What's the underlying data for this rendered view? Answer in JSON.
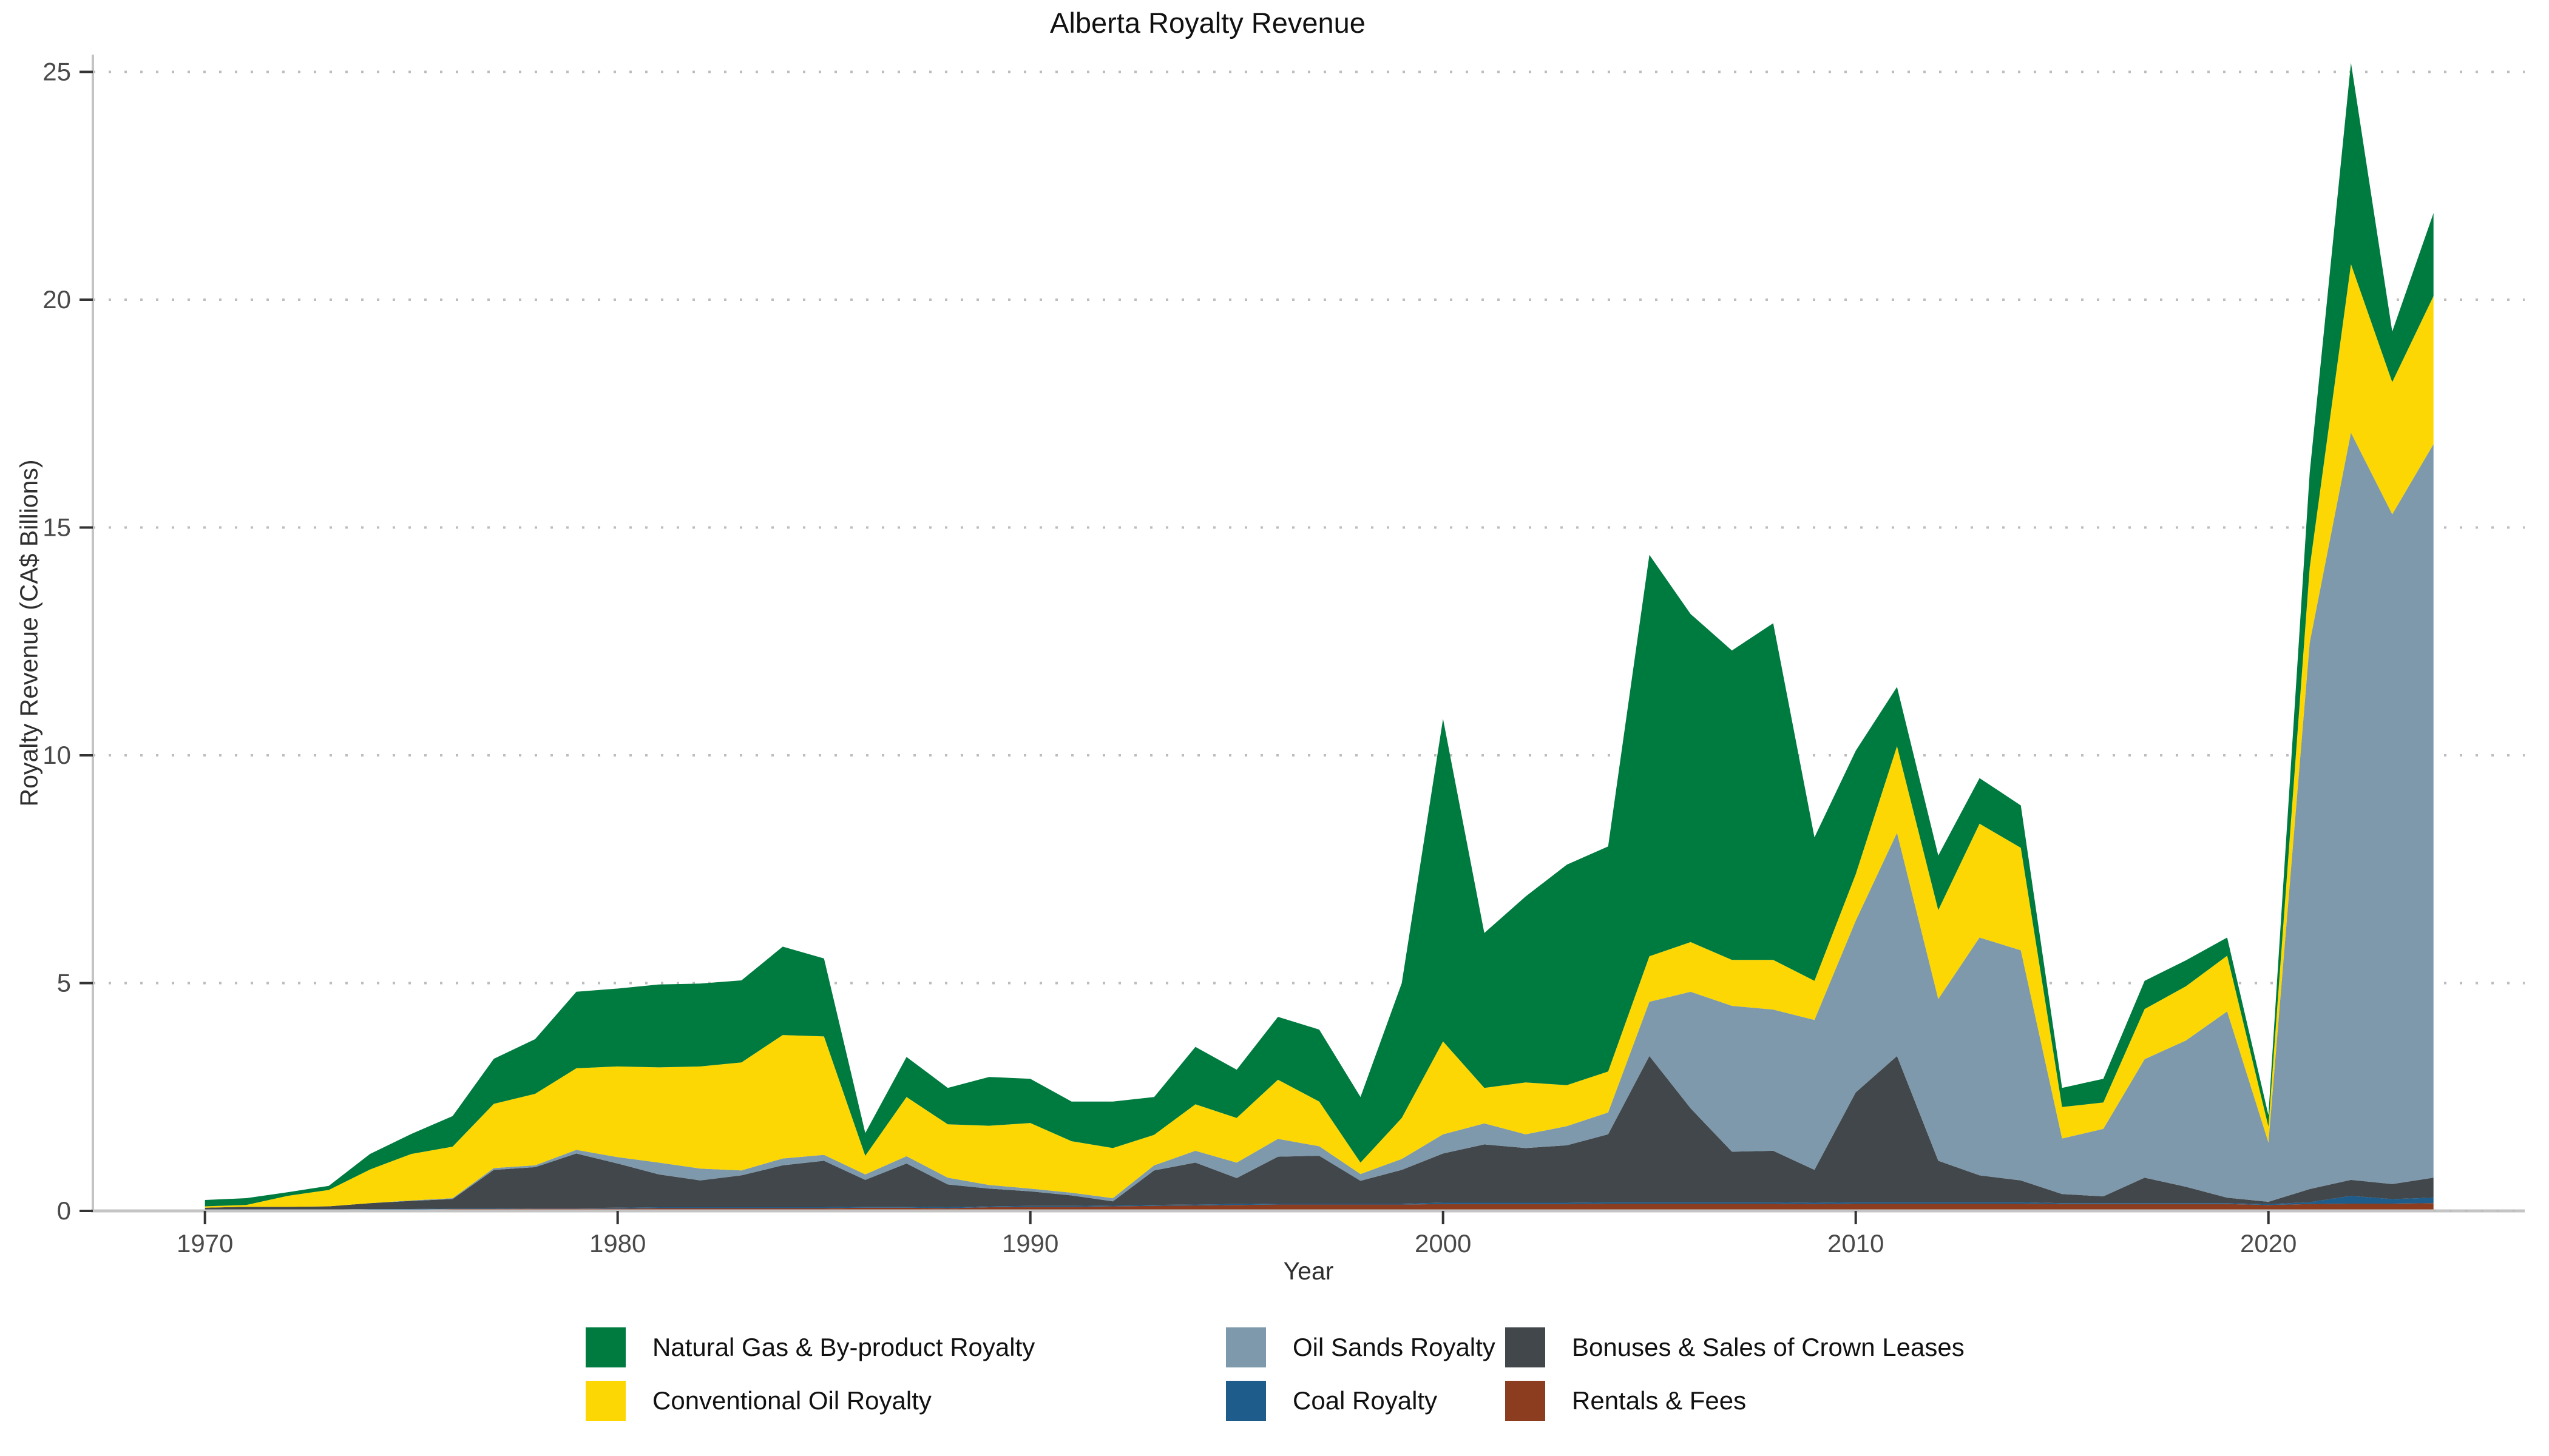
{
  "title": "Alberta Royalty Revenue",
  "axes": {
    "x_label": "Year",
    "y_label": "Royalty Revenue (CA$ Billions)",
    "x_ticks": [
      1970,
      1980,
      1990,
      2000,
      2010,
      2020
    ],
    "y_ticks": [
      0,
      5,
      10,
      15,
      20,
      25
    ]
  },
  "legend": {
    "position": "bottom",
    "items": [
      {
        "label": "Natural Gas & By-product Royalty",
        "series": "natural_gas",
        "color": "#007B40",
        "col": 0,
        "row": 0
      },
      {
        "label": "Conventional Oil Royalty",
        "series": "conventional_oil",
        "color": "#FCD703",
        "col": 0,
        "row": 1
      },
      {
        "label": "Oil Sands Royalty",
        "series": "oil_sands",
        "color": "#7E99AB",
        "col": 1,
        "row": 0
      },
      {
        "label": "Coal Royalty",
        "series": "coal",
        "color": "#1E5C8B",
        "col": 1,
        "row": 1
      },
      {
        "label": "Bonuses & Sales of Crown Leases",
        "series": "bonuses",
        "color": "#41474B",
        "col": 2,
        "row": 0
      },
      {
        "label": "Rentals & Fees",
        "series": "rentals",
        "color": "#8C3D20",
        "col": 2,
        "row": 1
      }
    ]
  },
  "colors": {
    "axis_line": "#C4C4C4",
    "tick_mark": "#333333",
    "tick_label": "#4a4a4a",
    "gridline": "#BDBDBD",
    "background": "#ffffff"
  },
  "chart_data": {
    "type": "area",
    "stacked": true,
    "title": "Alberta Royalty Revenue",
    "xlabel": "Year",
    "ylabel": "Royalty Revenue (CA$ Billions)",
    "xlim": [
      1970,
      2024
    ],
    "ylim": [
      0,
      25
    ],
    "xticks": [
      1970,
      1980,
      1990,
      2000,
      2010,
      2020
    ],
    "yticks": [
      0,
      5,
      10,
      15,
      20,
      25
    ],
    "grid": "dotted horizontal",
    "legend_position": "bottom",
    "x": [
      1970,
      1971,
      1972,
      1973,
      1974,
      1975,
      1976,
      1977,
      1978,
      1979,
      1980,
      1981,
      1982,
      1983,
      1984,
      1985,
      1986,
      1987,
      1988,
      1989,
      1990,
      1991,
      1992,
      1993,
      1994,
      1995,
      1996,
      1997,
      1998,
      1999,
      2000,
      2001,
      2002,
      2003,
      2004,
      2005,
      2006,
      2007,
      2008,
      2009,
      2010,
      2011,
      2012,
      2013,
      2014,
      2015,
      2016,
      2017,
      2018,
      2019,
      2020,
      2021,
      2022,
      2023,
      2024
    ],
    "series": [
      {
        "name": "Rentals & Fees",
        "key": "rentals",
        "color": "#8C3D20",
        "values": [
          0.01,
          0.01,
          0.02,
          0.02,
          0.03,
          0.03,
          0.04,
          0.04,
          0.05,
          0.05,
          0.05,
          0.06,
          0.06,
          0.06,
          0.06,
          0.06,
          0.07,
          0.07,
          0.06,
          0.08,
          0.09,
          0.09,
          0.1,
          0.11,
          0.12,
          0.13,
          0.14,
          0.14,
          0.14,
          0.14,
          0.15,
          0.15,
          0.15,
          0.15,
          0.16,
          0.16,
          0.16,
          0.16,
          0.16,
          0.15,
          0.16,
          0.16,
          0.16,
          0.16,
          0.16,
          0.15,
          0.15,
          0.15,
          0.15,
          0.15,
          0.13,
          0.15,
          0.16,
          0.16,
          0.17
        ]
      },
      {
        "name": "Coal Royalty",
        "key": "coal",
        "color": "#1E5C8B",
        "values": [
          0,
          0,
          0.01,
          0.01,
          0.01,
          0.01,
          0.01,
          0.01,
          0.01,
          0.01,
          0.02,
          0.02,
          0.02,
          0.02,
          0.02,
          0.02,
          0.02,
          0.02,
          0.02,
          0.02,
          0.02,
          0.02,
          0.02,
          0.02,
          0.02,
          0.02,
          0.02,
          0.02,
          0.02,
          0.02,
          0.03,
          0.03,
          0.03,
          0.03,
          0.03,
          0.03,
          0.03,
          0.03,
          0.03,
          0.03,
          0.03,
          0.03,
          0.03,
          0.03,
          0.03,
          0.02,
          0.02,
          0.02,
          0.02,
          0.02,
          0.02,
          0.04,
          0.17,
          0.1,
          0.12
        ]
      },
      {
        "name": "Bonuses & Sales of Crown Leases",
        "key": "bonuses",
        "color": "#41474B",
        "values": [
          0.06,
          0.08,
          0.06,
          0.07,
          0.13,
          0.18,
          0.21,
          0.85,
          0.9,
          1.2,
          0.97,
          0.72,
          0.59,
          0.7,
          0.92,
          1.02,
          0.59,
          0.95,
          0.5,
          0.39,
          0.32,
          0.23,
          0.09,
          0.76,
          0.92,
          0.57,
          1.03,
          1.05,
          0.5,
          0.74,
          1.08,
          1.28,
          1.2,
          1.26,
          1.49,
          3.21,
          2.06,
          1.11,
          1.13,
          0.72,
          2.41,
          3.21,
          0.91,
          0.59,
          0.48,
          0.2,
          0.15,
          0.56,
          0.36,
          0.12,
          0.05,
          0.29,
          0.35,
          0.33,
          0.44
        ]
      },
      {
        "name": "Oil Sands Royalty",
        "key": "oil_sands",
        "color": "#7E99AB",
        "values": [
          0,
          0,
          0,
          0,
          0,
          0.01,
          0.02,
          0.04,
          0.04,
          0.08,
          0.14,
          0.26,
          0.26,
          0.11,
          0.15,
          0.13,
          0.12,
          0.16,
          0.15,
          0.08,
          0.06,
          0.06,
          0.07,
          0.11,
          0.26,
          0.34,
          0.39,
          0.21,
          0.15,
          0.24,
          0.42,
          0.46,
          0.3,
          0.42,
          0.48,
          1.19,
          2.56,
          3.2,
          3.1,
          3.29,
          3.77,
          4.9,
          3.55,
          5.22,
          5.05,
          1.22,
          1.48,
          2.6,
          3.21,
          4.09,
          1.3,
          11.99,
          16.4,
          14.7,
          16.1
        ]
      },
      {
        "name": "Conventional Oil Royalty",
        "key": "conventional_oil",
        "color": "#FCD703",
        "values": [
          0.03,
          0.04,
          0.24,
          0.36,
          0.74,
          1.02,
          1.13,
          1.41,
          1.57,
          1.79,
          1.99,
          2.09,
          2.24,
          2.37,
          2.71,
          2.6,
          0.41,
          1.3,
          1.17,
          1.3,
          1.44,
          1.13,
          1.1,
          0.67,
          1.02,
          0.98,
          1.3,
          0.98,
          0.25,
          0.9,
          2.04,
          0.78,
          1.14,
          0.9,
          0.9,
          1.0,
          1.09,
          1.01,
          1.09,
          0.86,
          1.02,
          1.9,
          1.95,
          2.5,
          2.25,
          0.69,
          0.58,
          1.1,
          1.19,
          1.22,
          0.35,
          1.65,
          3.7,
          2.9,
          3.25
        ]
      },
      {
        "name": "Natural Gas & By-product Royalty",
        "key": "natural_gas",
        "color": "#007B40",
        "values": [
          0.14,
          0.15,
          0.08,
          0.09,
          0.34,
          0.44,
          0.67,
          0.99,
          1.2,
          1.68,
          1.71,
          1.82,
          1.82,
          1.8,
          1.94,
          1.71,
          0.5,
          0.88,
          0.8,
          1.07,
          0.97,
          0.87,
          1.02,
          0.83,
          1.26,
          1.06,
          1.38,
          1.58,
          1.44,
          2.96,
          7.08,
          3.4,
          4.08,
          4.84,
          4.94,
          8.81,
          7.2,
          6.79,
          7.39,
          3.15,
          2.71,
          1.3,
          1.2,
          1.0,
          0.93,
          0.42,
          0.52,
          0.62,
          0.57,
          0.4,
          0.25,
          2.08,
          4.42,
          1.11,
          1.82
        ]
      }
    ]
  }
}
